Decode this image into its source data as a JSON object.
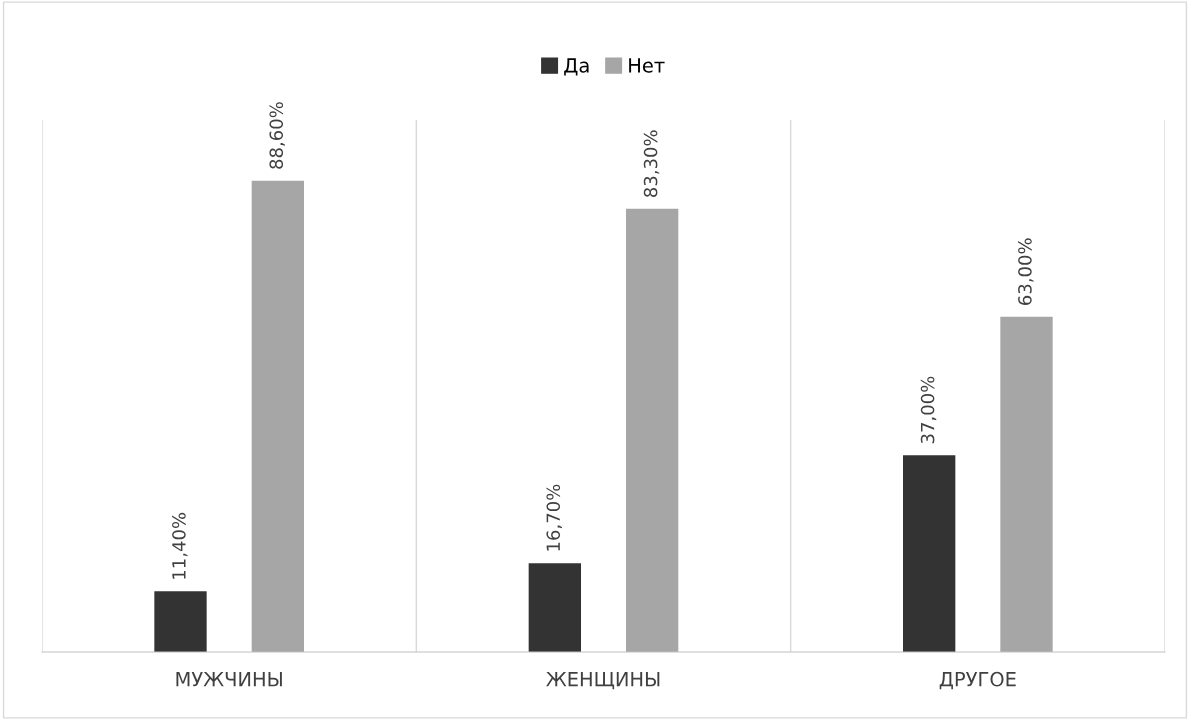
{
  "chart_data": {
    "type": "bar",
    "categories": [
      "МУЖЧИНЫ",
      "ЖЕНЩИНЫ",
      "ДРУГОЕ"
    ],
    "series": [
      {
        "name": "Да",
        "color": "#333333",
        "values": [
          11.4,
          16.7,
          37.0
        ],
        "value_labels": [
          "11,40%",
          "16,70%",
          "37,00%"
        ]
      },
      {
        "name": "Нет",
        "color": "#a6a6a6",
        "values": [
          88.6,
          83.3,
          63.0
        ],
        "value_labels": [
          "88,60%",
          "83,30%",
          "63,00%"
        ]
      }
    ],
    "ylim": [
      0,
      100
    ],
    "tick_labels": "x",
    "grid": "x",
    "legend": "top"
  }
}
